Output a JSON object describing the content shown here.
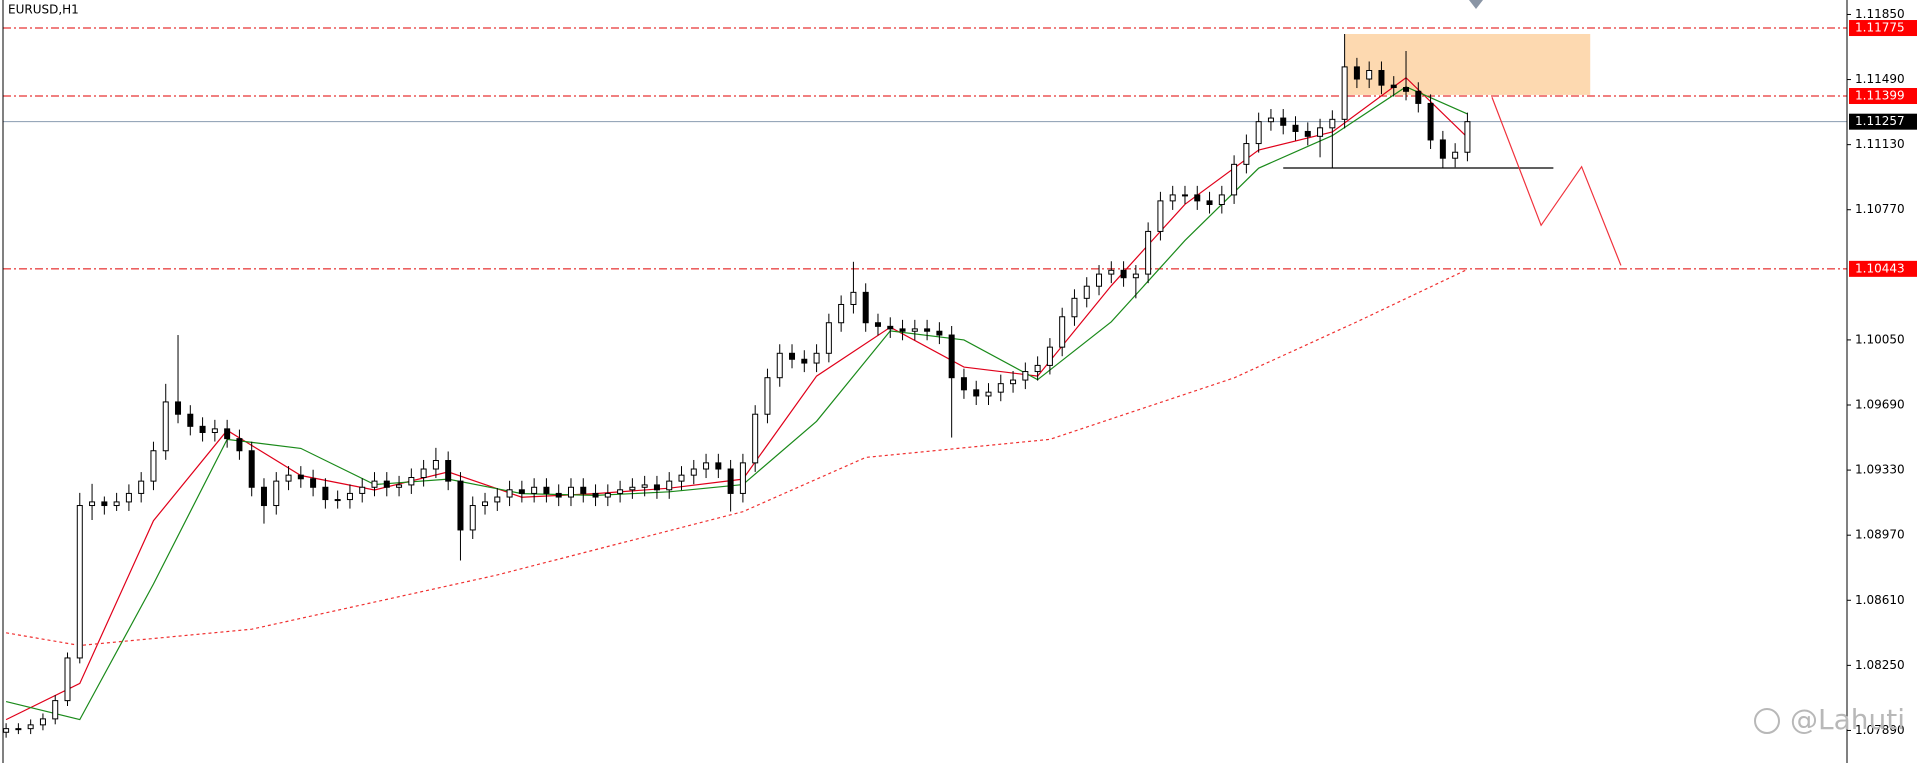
{
  "chart_data": {
    "type": "candlestick",
    "title": "EURUSD,H1",
    "watermark": "@Lahuti",
    "up_color": "#ffffff",
    "down_color": "#000000",
    "ylim": [
      1.0771,
      1.1193
    ],
    "yticks": [
      {
        "value": 1.1185,
        "label": "1.11850"
      },
      {
        "value": 1.1149,
        "label": "1.11490"
      },
      {
        "value": 1.1113,
        "label": "1.11130"
      },
      {
        "value": 1.1077,
        "label": "1.10770"
      },
      {
        "value": 1.1005,
        "label": "1.10050"
      },
      {
        "value": 1.0969,
        "label": "1.09690"
      },
      {
        "value": 1.0933,
        "label": "1.09330"
      },
      {
        "value": 1.0897,
        "label": "1.08970"
      },
      {
        "value": 1.0861,
        "label": "1.08610"
      },
      {
        "value": 1.0825,
        "label": "1.08250"
      },
      {
        "value": 1.0789,
        "label": "1.07890"
      }
    ],
    "open": [
      1.0788,
      1.079,
      1.079,
      1.07921,
      1.07954,
      1.08055,
      1.08291,
      1.09134,
      1.09154,
      1.09134,
      1.09154,
      1.09201,
      1.09269,
      1.09437,
      1.09707,
      1.09639,
      1.09572,
      1.09538,
      1.09558,
      1.09504,
      1.09437,
      1.09235,
      1.09134,
      1.09269,
      1.09302,
      1.09282,
      1.09235,
      1.09167,
      1.09167,
      1.09201,
      1.09235,
      1.09269,
      1.09235,
      1.09248,
      1.09289,
      1.09336,
      1.09383,
      1.09269,
      1.08999,
      1.09134,
      1.09154,
      1.09181,
      1.09221,
      1.09201,
      1.09235,
      1.09201,
      1.09181,
      1.09235,
      1.09201,
      1.09181,
      1.09201,
      1.09221,
      1.09235,
      1.09248,
      1.09221,
      1.09269,
      1.09302,
      1.09336,
      1.0937,
      1.09336,
      1.09201,
      1.0937,
      1.09639,
      1.09841,
      1.09976,
      1.09943,
      1.09922,
      1.09976,
      1.10145,
      1.10246,
      1.10313,
      1.10145,
      1.10125,
      1.10111,
      1.10098,
      1.10111,
      1.10098,
      1.10077,
      1.09841,
      1.09774,
      1.0974,
      1.09761,
      1.09808,
      1.09828,
      1.09875,
      1.09909,
      1.1001,
      1.10178,
      1.1028,
      1.10347,
      1.10414,
      1.10435,
      1.10394,
      1.10414,
      1.1065,
      1.10819,
      1.10852,
      1.10852,
      1.10819,
      1.10799,
      1.10852,
      1.11021,
      1.11136,
      1.11257,
      1.11277,
      1.11237,
      1.11203,
      1.11176,
      1.11223,
      1.1127,
      1.1156,
      1.11493,
      1.1154,
      1.11459,
      1.11446,
      1.11425,
      1.11358,
      1.11156,
      1.11055,
      1.11088
    ],
    "high": [
      1.0793,
      1.0793,
      1.07951,
      1.07984,
      1.08085,
      1.08321,
      1.09204,
      1.09254,
      1.09184,
      1.09204,
      1.09251,
      1.09319,
      1.09487,
      1.09807,
      1.10077,
      1.09689,
      1.09622,
      1.09608,
      1.09608,
      1.09554,
      1.09487,
      1.09285,
      1.09319,
      1.09352,
      1.09352,
      1.09332,
      1.09285,
      1.09217,
      1.09251,
      1.09285,
      1.09319,
      1.09319,
      1.09298,
      1.09339,
      1.09386,
      1.09453,
      1.09433,
      1.09319,
      1.09184,
      1.09204,
      1.09231,
      1.09271,
      1.09271,
      1.09285,
      1.09285,
      1.09251,
      1.09285,
      1.09285,
      1.09251,
      1.09251,
      1.09271,
      1.09285,
      1.09298,
      1.09298,
      1.09319,
      1.09352,
      1.09386,
      1.0942,
      1.0942,
      1.09386,
      1.0942,
      1.09689,
      1.09891,
      1.10026,
      1.10026,
      1.09993,
      1.10026,
      1.10195,
      1.10296,
      1.10482,
      1.10363,
      1.10195,
      1.10175,
      1.10161,
      1.10161,
      1.10161,
      1.10148,
      1.10127,
      1.09891,
      1.09824,
      1.09811,
      1.09858,
      1.09878,
      1.09925,
      1.09959,
      1.1006,
      1.10228,
      1.1033,
      1.10397,
      1.10464,
      1.10485,
      1.10485,
      1.10464,
      1.107,
      1.10869,
      1.10902,
      1.10902,
      1.10902,
      1.10869,
      1.10902,
      1.11071,
      1.11186,
      1.11307,
      1.11327,
      1.11327,
      1.11287,
      1.11253,
      1.11273,
      1.1132,
      1.11742,
      1.1161,
      1.1159,
      1.1159,
      1.11509,
      1.11648,
      1.11475,
      1.11408,
      1.11206,
      1.11138,
      1.11307
    ],
    "low": [
      1.0785,
      1.0787,
      1.0787,
      1.07891,
      1.07924,
      1.08025,
      1.08261,
      1.09054,
      1.09084,
      1.09104,
      1.09104,
      1.09151,
      1.09219,
      1.09387,
      1.09589,
      1.09522,
      1.09488,
      1.09488,
      1.09454,
      1.09387,
      1.09185,
      1.09034,
      1.09084,
      1.09219,
      1.09232,
      1.09185,
      1.09117,
      1.09117,
      1.09117,
      1.09151,
      1.09185,
      1.09185,
      1.09185,
      1.09198,
      1.09239,
      1.09286,
      1.09219,
      1.0883,
      1.08949,
      1.09084,
      1.09104,
      1.09131,
      1.09151,
      1.09151,
      1.09151,
      1.09131,
      1.09131,
      1.09151,
      1.09131,
      1.09131,
      1.09151,
      1.09171,
      1.09185,
      1.09171,
      1.09171,
      1.09219,
      1.09252,
      1.09286,
      1.09286,
      1.09101,
      1.09151,
      1.0932,
      1.09589,
      1.09791,
      1.09893,
      1.09872,
      1.09872,
      1.09926,
      1.10095,
      1.10196,
      1.10095,
      1.10075,
      1.10061,
      1.10048,
      1.10048,
      1.10048,
      1.10027,
      1.0951,
      1.09724,
      1.0969,
      1.0969,
      1.09711,
      1.09758,
      1.09778,
      1.09825,
      1.09859,
      1.0996,
      1.10128,
      1.1023,
      1.10297,
      1.10364,
      1.10344,
      1.1028,
      1.10364,
      1.106,
      1.10769,
      1.10802,
      1.10769,
      1.10749,
      1.10749,
      1.10802,
      1.10971,
      1.11086,
      1.11207,
      1.11187,
      1.11153,
      1.11126,
      1.1106,
      1.11001,
      1.1122,
      1.11443,
      1.11443,
      1.11409,
      1.11396,
      1.11375,
      1.11308,
      1.11106,
      1.11001,
      1.11005,
      1.11038
    ],
    "close": [
      1.079,
      1.079,
      1.07921,
      1.07954,
      1.08055,
      1.08291,
      1.09134,
      1.09154,
      1.09134,
      1.09154,
      1.09201,
      1.09269,
      1.09437,
      1.09707,
      1.09639,
      1.09572,
      1.09538,
      1.09558,
      1.09504,
      1.09437,
      1.09235,
      1.09134,
      1.09269,
      1.09302,
      1.09282,
      1.09235,
      1.09167,
      1.09167,
      1.09201,
      1.09235,
      1.09269,
      1.09235,
      1.09248,
      1.09289,
      1.09336,
      1.09383,
      1.09269,
      1.08999,
      1.09134,
      1.09154,
      1.09181,
      1.09221,
      1.09201,
      1.09235,
      1.09201,
      1.09181,
      1.09235,
      1.09201,
      1.09181,
      1.09201,
      1.09221,
      1.09235,
      1.09248,
      1.09221,
      1.09269,
      1.09302,
      1.09336,
      1.0937,
      1.09336,
      1.09201,
      1.0937,
      1.09639,
      1.09841,
      1.09976,
      1.09943,
      1.09922,
      1.09976,
      1.10145,
      1.10246,
      1.10313,
      1.10145,
      1.10125,
      1.10111,
      1.10098,
      1.10111,
      1.10098,
      1.10077,
      1.09841,
      1.09774,
      1.0974,
      1.09761,
      1.09808,
      1.09828,
      1.09875,
      1.09909,
      1.1001,
      1.10178,
      1.1028,
      1.10347,
      1.10414,
      1.10435,
      1.10394,
      1.10414,
      1.1065,
      1.10819,
      1.10852,
      1.10852,
      1.10819,
      1.10799,
      1.10852,
      1.11021,
      1.11136,
      1.11257,
      1.11277,
      1.11237,
      1.11203,
      1.11176,
      1.11223,
      1.1127,
      1.1156,
      1.11493,
      1.1154,
      1.11459,
      1.11446,
      1.11425,
      1.11358,
      1.11156,
      1.11055,
      1.11088,
      1.11257
    ],
    "moving_averages": [
      {
        "color": "#e0001a",
        "style": "solid",
        "x": [
          0,
          6,
          12,
          18,
          24,
          30,
          36,
          42,
          48,
          54,
          60,
          66,
          72,
          78,
          84,
          90,
          96,
          102,
          108,
          114,
          119
        ],
        "values": [
          1.0795,
          1.0815,
          1.0905,
          1.0955,
          1.093,
          1.0922,
          1.0932,
          1.0918,
          1.092,
          1.0923,
          1.0928,
          1.0985,
          1.1012,
          1.099,
          1.0985,
          1.1035,
          1.108,
          1.111,
          1.112,
          1.115,
          1.1117
        ]
      },
      {
        "color": "#1a8a1a",
        "style": "solid",
        "x": [
          0,
          6,
          12,
          18,
          24,
          30,
          36,
          42,
          48,
          54,
          60,
          66,
          72,
          78,
          84,
          90,
          96,
          102,
          108,
          114,
          119
        ],
        "values": [
          1.0805,
          1.0795,
          1.087,
          1.095,
          1.0945,
          1.0925,
          1.0928,
          1.092,
          1.0919,
          1.0921,
          1.0925,
          1.096,
          1.101,
          1.1005,
          1.0983,
          1.1015,
          1.106,
          1.11,
          1.1118,
          1.1145,
          1.113
        ]
      },
      {
        "color": "#f03030",
        "style": "dotted",
        "x": [
          0,
          6,
          20,
          40,
          60,
          70,
          85,
          100,
          110,
          119
        ],
        "values": [
          1.0843,
          1.0836,
          1.0845,
          1.0875,
          1.091,
          1.094,
          1.095,
          1.0984,
          1.1015,
          1.1044
        ]
      }
    ],
    "levels": [
      {
        "value": 1.11775,
        "color": "#e00000",
        "label_color": "#ff0000",
        "style": "dashdot"
      },
      {
        "value": 1.11399,
        "color": "#e00000",
        "label_color": "#ff0000",
        "style": "dashdot"
      },
      {
        "value": 1.10443,
        "color": "#e00000",
        "label_color": "#ff0000",
        "style": "dashdot"
      },
      {
        "value": 1.11257,
        "color": "#8a9bb0",
        "label_color": "#000000",
        "style": "solid"
      }
    ],
    "zone": {
      "x": [
        109,
        129
      ],
      "values": [
        1.11405,
        1.11742
      ],
      "color": "#fdd9b0"
    },
    "support": {
      "x": [
        104,
        126
      ],
      "value": 1.11001,
      "color": "#000000"
    },
    "projection": {
      "x": [
        121,
        125,
        128.3,
        131.5
      ],
      "values": [
        1.11392,
        1.10684,
        1.11008,
        1.10462
      ],
      "color": "#f0323c"
    }
  }
}
